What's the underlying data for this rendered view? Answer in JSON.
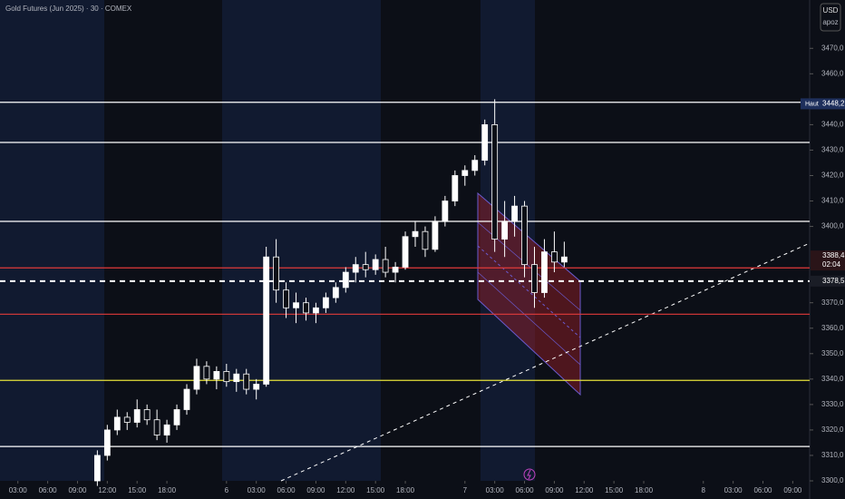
{
  "chart_data": {
    "type": "candlestick",
    "title": "Gold Futures (Jun 2025) · 30 · COMEX",
    "currency": "USD",
    "scale_label": "apoz",
    "xlim": [
      1.2,
      82.7
    ],
    "ylim": [
      3300,
      3489
    ],
    "xticks": [
      {
        "value": 3,
        "label": "03:00"
      },
      {
        "value": 6,
        "label": "06:00"
      },
      {
        "value": 9,
        "label": "09:00"
      },
      {
        "value": 12,
        "label": "12:00"
      },
      {
        "value": 15,
        "label": "15:00"
      },
      {
        "value": 18,
        "label": "18:00"
      },
      {
        "value": 24,
        "label": "6"
      },
      {
        "value": 27,
        "label": "03:00"
      },
      {
        "value": 30,
        "label": "06:00"
      },
      {
        "value": 33,
        "label": "09:00"
      },
      {
        "value": 36,
        "label": "12:00"
      },
      {
        "value": 39,
        "label": "15:00"
      },
      {
        "value": 42,
        "label": "18:00"
      },
      {
        "value": 48,
        "label": "7"
      },
      {
        "value": 51,
        "label": "03:00"
      },
      {
        "value": 54,
        "label": "06:00"
      },
      {
        "value": 57,
        "label": "09:00"
      },
      {
        "value": 60,
        "label": "12:00"
      },
      {
        "value": 63,
        "label": "15:00"
      },
      {
        "value": 66,
        "label": "18:00"
      },
      {
        "value": 72,
        "label": "8"
      },
      {
        "value": 75,
        "label": "03:00"
      },
      {
        "value": 78,
        "label": "06:00"
      },
      {
        "value": 81,
        "label": "09:00"
      }
    ],
    "yticks": [
      {
        "value": 3300,
        "label": "3300,0"
      },
      {
        "value": 3310,
        "label": "3310,0"
      },
      {
        "value": 3320,
        "label": "3320,0"
      },
      {
        "value": 3330,
        "label": "3330,0"
      },
      {
        "value": 3340,
        "label": "3340,0"
      },
      {
        "value": 3350,
        "label": "3350,0"
      },
      {
        "value": 3360,
        "label": "3360,0"
      },
      {
        "value": 3370,
        "label": "3370,0"
      },
      {
        "value": 3400,
        "label": "3400,0"
      },
      {
        "value": 3410,
        "label": "3410,0"
      },
      {
        "value": 3420,
        "label": "3420,0"
      },
      {
        "value": 3430,
        "label": "3430,0"
      },
      {
        "value": 3440,
        "label": "3440,0"
      },
      {
        "value": 3460,
        "label": "3460,0"
      },
      {
        "value": 3470,
        "label": "3470,0"
      }
    ],
    "candles": {
      "up_color": "#ffffff",
      "down_color": "#0c0f17",
      "x": [
        11,
        12,
        13,
        14,
        15,
        16,
        17,
        18,
        19,
        20,
        21,
        22,
        23,
        24,
        25,
        26,
        27,
        28,
        29,
        30,
        31,
        32,
        33,
        34,
        35,
        36,
        37,
        38,
        39,
        40,
        41,
        42,
        43,
        44,
        45,
        46,
        47,
        48,
        49,
        50,
        51,
        52,
        53,
        54,
        55,
        56,
        57,
        58
      ],
      "open": [
        3300,
        3310,
        3320,
        3325,
        3323,
        3328,
        3324,
        3318,
        3322,
        3328,
        3336,
        3345,
        3340,
        3343,
        3339,
        3342,
        3336,
        3338,
        3388,
        3375,
        3368,
        3370,
        3366,
        3368,
        3372,
        3376,
        3382,
        3385,
        3383,
        3387,
        3382,
        3384,
        3396,
        3398,
        3391,
        3402,
        3410,
        3420,
        3422,
        3426,
        3440,
        3395,
        3402,
        3408,
        3385,
        3374,
        3390,
        3386
      ],
      "high": [
        3312,
        3322,
        3328,
        3327,
        3332,
        3330,
        3328,
        3324,
        3330,
        3338,
        3348,
        3347,
        3345,
        3346,
        3344,
        3344,
        3340,
        3392,
        3395,
        3378,
        3374,
        3372,
        3370,
        3374,
        3378,
        3384,
        3388,
        3390,
        3389,
        3392,
        3386,
        3398,
        3402,
        3400,
        3404,
        3412,
        3422,
        3424,
        3428,
        3442,
        3450,
        3410,
        3412,
        3410,
        3392,
        3395,
        3398,
        3394
      ],
      "low": [
        3298,
        3308,
        3318,
        3320,
        3321,
        3322,
        3316,
        3315,
        3320,
        3326,
        3334,
        3338,
        3336,
        3337,
        3335,
        3334,
        3332,
        3337,
        3370,
        3364,
        3362,
        3363,
        3362,
        3366,
        3370,
        3374,
        3378,
        3380,
        3381,
        3380,
        3378,
        3383,
        3392,
        3388,
        3390,
        3400,
        3408,
        3416,
        3420,
        3424,
        3390,
        3388,
        3396,
        3380,
        3368,
        3372,
        3382,
        3384
      ],
      "close": [
        3310,
        3320,
        3325,
        3323,
        3328,
        3324,
        3318,
        3322,
        3328,
        3336,
        3345,
        3340,
        3343,
        3339,
        3342,
        3336,
        3338,
        3388,
        3375,
        3368,
        3370,
        3366,
        3368,
        3372,
        3376,
        3382,
        3385,
        3383,
        3387,
        3382,
        3384,
        3396,
        3398,
        3391,
        3402,
        3410,
        3420,
        3422,
        3426,
        3440,
        3395,
        3402,
        3408,
        3385,
        3374,
        3390,
        3386,
        3388
      ]
    },
    "levels": [
      {
        "value": 3448.8,
        "color": "#ffffff",
        "dashed": false
      },
      {
        "value": 3433,
        "color": "#ffffff",
        "dashed": false
      },
      {
        "value": 3402,
        "color": "#ffffff",
        "dashed": false
      },
      {
        "value": 3383.7,
        "color": "#e03a3a",
        "dashed": false
      },
      {
        "value": 3378.5,
        "color": "#ffffff",
        "dashed": true
      },
      {
        "value": 3365.5,
        "color": "#e03a3a",
        "dashed": false
      },
      {
        "value": 3339.5,
        "color": "#e5e03a",
        "dashed": false
      },
      {
        "value": 3313.5,
        "color": "#ffffff",
        "dashed": false
      }
    ],
    "price_labels": [
      {
        "value": 3448.2,
        "label": "3448,2",
        "tag": "Haut",
        "color": "#1e2f5c"
      },
      {
        "value": 3388.4,
        "label": "3388,4",
        "timer": "02:04",
        "color": "#2a1418"
      },
      {
        "value": 3378.5,
        "label": "3378,5",
        "color": "#1a1d26"
      }
    ]
  }
}
